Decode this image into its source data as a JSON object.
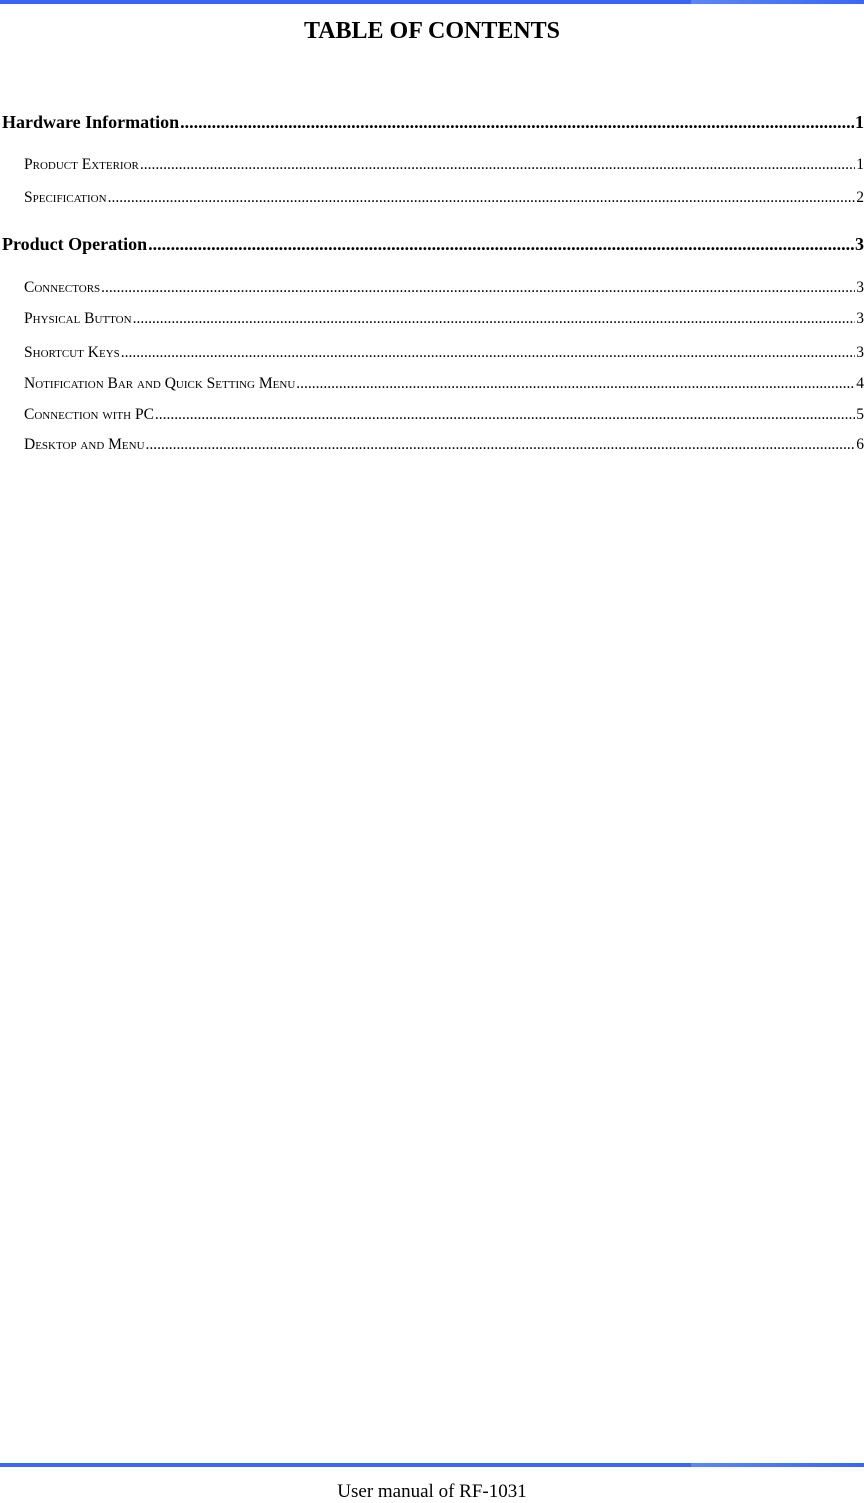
{
  "title": "TABLE OF CONTENTS",
  "toc": [
    {
      "label": "Hardware Information",
      "page": "1",
      "level": 1
    },
    {
      "label": "Product Exterior",
      "page": "1",
      "level": 2
    },
    {
      "label": "Specification",
      "page": "2",
      "level": 2
    },
    {
      "label": "Product Operation",
      "page": "3",
      "level": 1
    },
    {
      "label": "Connectors",
      "page": "3",
      "level": 2
    },
    {
      "label": "Physical Button",
      "page": "3",
      "level": 2
    },
    {
      "label": "Shortcut Keys",
      "page": "3",
      "level": 2
    },
    {
      "label": "Notification Bar and Quick Setting Menu",
      "page": "4",
      "level": 2
    },
    {
      "label": "Connection with PC",
      "page": "5",
      "level": 2
    },
    {
      "label": "Desktop and Menu",
      "page": "6",
      "level": 2
    }
  ],
  "footer": "User manual of RF-1031",
  "colors": {
    "rule": "#3a66f5"
  }
}
